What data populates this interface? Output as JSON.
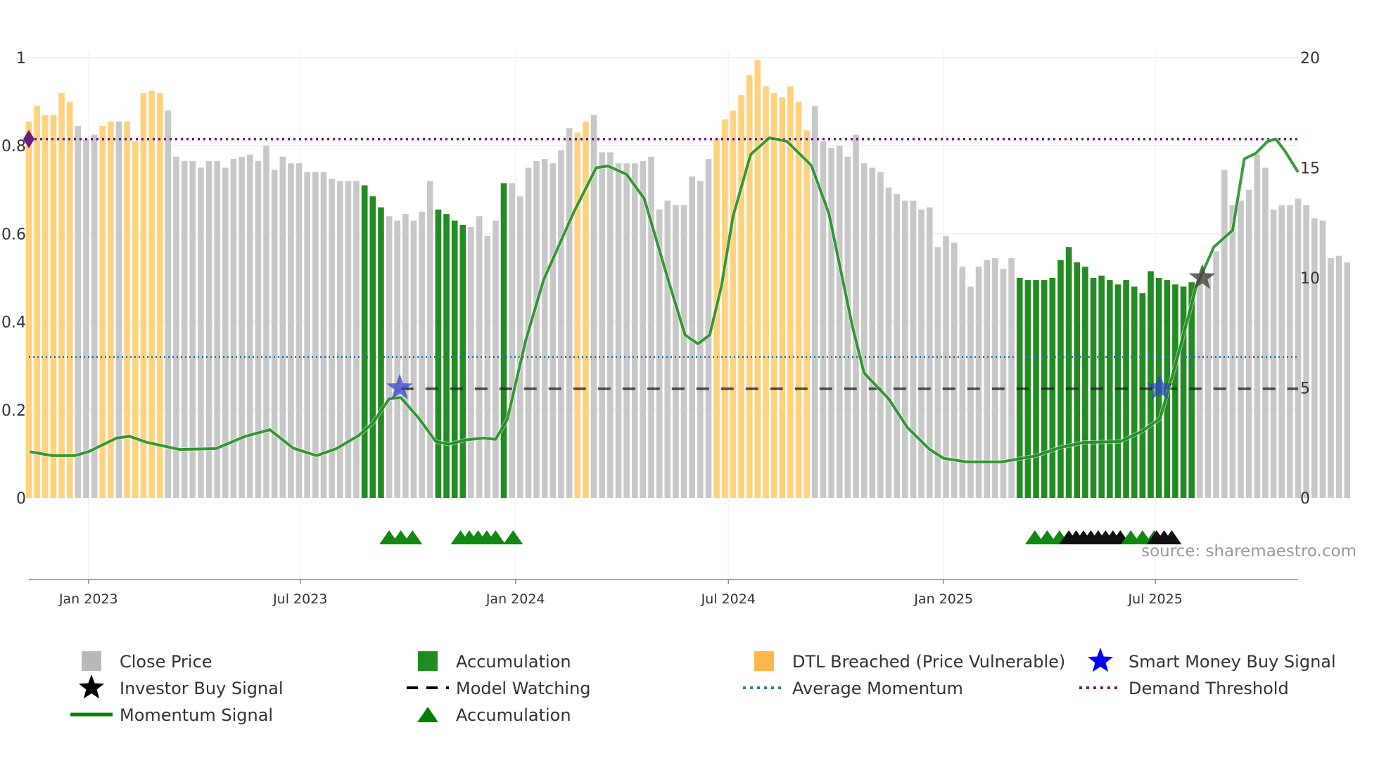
{
  "chart_data": {
    "type": "bar",
    "title": "",
    "source": "source: sharemaestro.com",
    "left_axis": {
      "range": [
        0,
        1
      ],
      "tick_values": [
        0,
        0.2,
        0.4,
        0.6,
        0.8,
        1
      ],
      "tick_labels": [
        "0",
        "0.2",
        "0.4",
        "0.6",
        "0.8",
        "1"
      ]
    },
    "right_axis": {
      "range": [
        0,
        20
      ],
      "tick_values": [
        0,
        5,
        10,
        15,
        20
      ],
      "tick_labels": [
        "0",
        "5",
        "10",
        "15",
        "20"
      ]
    },
    "x_axis": {
      "range": [
        "2022-11-11",
        "2025-10-31"
      ],
      "ticks": [
        {
          "date": "2023-01-01",
          "label": "Jan 2023"
        },
        {
          "date": "2023-07-01",
          "label": "Jul 2023"
        },
        {
          "date": "2024-01-01",
          "label": "Jan 2024"
        },
        {
          "date": "2024-07-01",
          "label": "Jul 2024"
        },
        {
          "date": "2025-01-01",
          "label": "Jan 2025"
        },
        {
          "date": "2025-07-01",
          "label": "Jul 2025"
        }
      ]
    },
    "weekly_start": "2022-11-11",
    "close_price": [
      17.1,
      17.8,
      17.4,
      17.4,
      18.4,
      18.0,
      16.9,
      16.3,
      16.5,
      16.9,
      17.1,
      17.1,
      17.1,
      16.2,
      18.4,
      18.5,
      18.4,
      17.6,
      15.5,
      15.3,
      15.3,
      15.0,
      15.3,
      15.3,
      15.0,
      15.4,
      15.5,
      15.6,
      15.3,
      16.0,
      14.9,
      15.5,
      15.2,
      15.2,
      14.8,
      14.8,
      14.8,
      14.5,
      14.4,
      14.4,
      14.4,
      14.2,
      13.7,
      13.2,
      12.8,
      12.6,
      12.9,
      12.6,
      13.0,
      14.4,
      13.1,
      12.9,
      12.6,
      12.4,
      12.3,
      12.8,
      11.9,
      12.6,
      14.3,
      14.3,
      13.7,
      15.0,
      15.3,
      15.4,
      15.2,
      15.8,
      16.8,
      16.6,
      17.1,
      17.4,
      15.7,
      15.7,
      15.2,
      15.2,
      15.2,
      15.3,
      15.5,
      13.1,
      13.5,
      13.3,
      13.3,
      14.6,
      14.4,
      15.4,
      16.3,
      17.2,
      17.6,
      18.3,
      19.2,
      19.9,
      18.7,
      18.4,
      18.2,
      18.7,
      18.0,
      16.7,
      17.8,
      16.2,
      15.9,
      16.0,
      15.5,
      16.5,
      15.2,
      15.0,
      14.8,
      14.1,
      13.8,
      13.5,
      13.5,
      13.1,
      13.2,
      11.4,
      11.9,
      11.6,
      10.5,
      9.6,
      10.5,
      10.8,
      10.9,
      10.4,
      10.9,
      10.0,
      9.9,
      9.9,
      9.9,
      10.0,
      10.8,
      11.4,
      10.7,
      10.5,
      10.0,
      10.1,
      9.9,
      9.7,
      9.9,
      9.6,
      9.3,
      10.3,
      10.0,
      9.9,
      9.7,
      9.6,
      9.8,
      10.2,
      10.2,
      11.2,
      14.9,
      13.3,
      13.5,
      14.0,
      15.6,
      15.0,
      13.1,
      13.3,
      13.3,
      13.6,
      13.3,
      12.7,
      12.6,
      10.9,
      11.0,
      10.7
    ],
    "accumulation_weeks": [
      41,
      42,
      43,
      50,
      51,
      52,
      53,
      58,
      121,
      122,
      123,
      124,
      125,
      126,
      127,
      128,
      129,
      130,
      131,
      132,
      133,
      134,
      135,
      136,
      137,
      138,
      139,
      140,
      141,
      142
    ],
    "dtl_breached_weeks": [
      0,
      1,
      2,
      3,
      4,
      5,
      9,
      10,
      12,
      13,
      14,
      15,
      16,
      67,
      68,
      84,
      85,
      86,
      87,
      88,
      89,
      90,
      91,
      92,
      93,
      94,
      95
    ],
    "momentum_signal": [
      [
        "2022-11-12",
        0.105
      ],
      [
        "2022-12-01",
        0.096
      ],
      [
        "2022-12-20",
        0.096
      ],
      [
        "2023-01-01",
        0.105
      ],
      [
        "2023-01-25",
        0.136
      ],
      [
        "2023-02-05",
        0.14
      ],
      [
        "2023-02-20",
        0.126
      ],
      [
        "2023-03-20",
        0.11
      ],
      [
        "2023-04-20",
        0.112
      ],
      [
        "2023-05-15",
        0.14
      ],
      [
        "2023-06-05",
        0.155
      ],
      [
        "2023-06-25",
        0.113
      ],
      [
        "2023-07-15",
        0.096
      ],
      [
        "2023-08-01",
        0.112
      ],
      [
        "2023-08-20",
        0.142
      ],
      [
        "2023-09-01",
        0.17
      ],
      [
        "2023-09-15",
        0.225
      ],
      [
        "2023-09-25",
        0.228
      ],
      [
        "2023-10-10",
        0.182
      ],
      [
        "2023-10-25",
        0.128
      ],
      [
        "2023-11-05",
        0.122
      ],
      [
        "2023-11-20",
        0.132
      ],
      [
        "2023-12-05",
        0.136
      ],
      [
        "2023-12-15",
        0.133
      ],
      [
        "2023-12-25",
        0.178
      ],
      [
        "2024-01-10",
        0.36
      ],
      [
        "2024-01-25",
        0.495
      ],
      [
        "2024-02-20",
        0.65
      ],
      [
        "2024-03-10",
        0.75
      ],
      [
        "2024-03-20",
        0.754
      ],
      [
        "2024-04-05",
        0.735
      ],
      [
        "2024-04-20",
        0.68
      ],
      [
        "2024-05-10",
        0.5
      ],
      [
        "2024-05-25",
        0.37
      ],
      [
        "2024-06-05",
        0.35
      ],
      [
        "2024-06-15",
        0.37
      ],
      [
        "2024-06-25",
        0.48
      ],
      [
        "2024-07-05",
        0.64
      ],
      [
        "2024-07-20",
        0.78
      ],
      [
        "2024-08-05",
        0.818
      ],
      [
        "2024-08-20",
        0.81
      ],
      [
        "2024-09-10",
        0.755
      ],
      [
        "2024-09-25",
        0.645
      ],
      [
        "2024-10-15",
        0.39
      ],
      [
        "2024-10-25",
        0.284
      ],
      [
        "2024-11-15",
        0.225
      ],
      [
        "2024-12-01",
        0.16
      ],
      [
        "2024-12-20",
        0.11
      ],
      [
        "2025-01-01",
        0.09
      ],
      [
        "2025-01-20",
        0.082
      ],
      [
        "2025-02-20",
        0.082
      ],
      [
        "2025-03-20",
        0.095
      ],
      [
        "2025-04-10",
        0.114
      ],
      [
        "2025-05-01",
        0.126
      ],
      [
        "2025-06-01",
        0.128
      ],
      [
        "2025-06-20",
        0.152
      ],
      [
        "2025-07-05",
        0.18
      ],
      [
        "2025-07-20",
        0.32
      ],
      [
        "2025-08-05",
        0.48
      ],
      [
        "2025-08-20",
        0.57
      ],
      [
        "2025-09-05",
        0.608
      ],
      [
        "2025-09-15",
        0.77
      ],
      [
        "2025-09-25",
        0.783
      ],
      [
        "2025-10-05",
        0.81
      ],
      [
        "2025-10-12",
        0.815
      ],
      [
        "2025-10-20",
        0.787
      ],
      [
        "2025-10-31",
        0.74
      ]
    ],
    "model_watching": {
      "start": "2023-09-25",
      "end": "2025-10-31",
      "value": 0.248
    },
    "average_momentum": 0.32,
    "demand_threshold": 0.815,
    "smart_money_buy_signal": [
      [
        "2023-09-24",
        0.25
      ],
      [
        "2025-07-05",
        0.25
      ]
    ],
    "investor_buy_signal": [
      [
        "2025-08-10",
        0.5
      ]
    ],
    "marker_row_blocks": [
      {
        "start": "2023-09-15",
        "end": "2023-10-05",
        "count": 3,
        "color": "green"
      },
      {
        "start": "2023-11-15",
        "end": "2023-12-15",
        "count": 5,
        "color": "green"
      },
      {
        "start": "2023-12-30",
        "end": "2023-12-30",
        "count": 1,
        "color": "green"
      },
      {
        "start": "2025-03-20",
        "end": "2025-04-10",
        "count": 3,
        "color": "green"
      },
      {
        "start": "2025-04-18",
        "end": "2025-06-01",
        "count": 8,
        "color": "black"
      },
      {
        "start": "2025-06-10",
        "end": "2025-06-30",
        "count": 3,
        "color": "green"
      },
      {
        "start": "2025-07-02",
        "end": "2025-07-15",
        "count": 3,
        "color": "black"
      }
    ],
    "legend": [
      {
        "label": "Close Price",
        "kind": "bar",
        "color": "#b9b9b9"
      },
      {
        "label": "Accumulation",
        "kind": "bar",
        "color": "#228b22"
      },
      {
        "label": "DTL Breached (Price Vulnerable)",
        "kind": "bar",
        "color": "#ffb74d"
      },
      {
        "label": "Smart Money Buy Signal",
        "kind": "star",
        "color": "#0000ff"
      },
      {
        "label": "Investor Buy Signal",
        "kind": "star",
        "color": "#000000"
      },
      {
        "label": "Model Watching",
        "kind": "dash",
        "color": "#000000"
      },
      {
        "label": "Average Momentum",
        "kind": "dot",
        "color": "#2e7aa6"
      },
      {
        "label": "Demand Threshold",
        "kind": "dot",
        "color": "#6a1b7a"
      },
      {
        "label": "Momentum Signal",
        "kind": "line",
        "color": "#008000"
      },
      {
        "label": "Accumulation",
        "kind": "triangle",
        "color": "#008000"
      }
    ],
    "colors": {
      "close": "#c8c8c8",
      "accumulation": "#228b22",
      "dtl": "#ffd27f",
      "momentum": "#008000",
      "demand": "#6a1b7a",
      "average": "#2e7aa6",
      "smart_money": "#3344cc",
      "investor": "#444444",
      "grid": "#ececec",
      "axis": "#999999"
    }
  }
}
